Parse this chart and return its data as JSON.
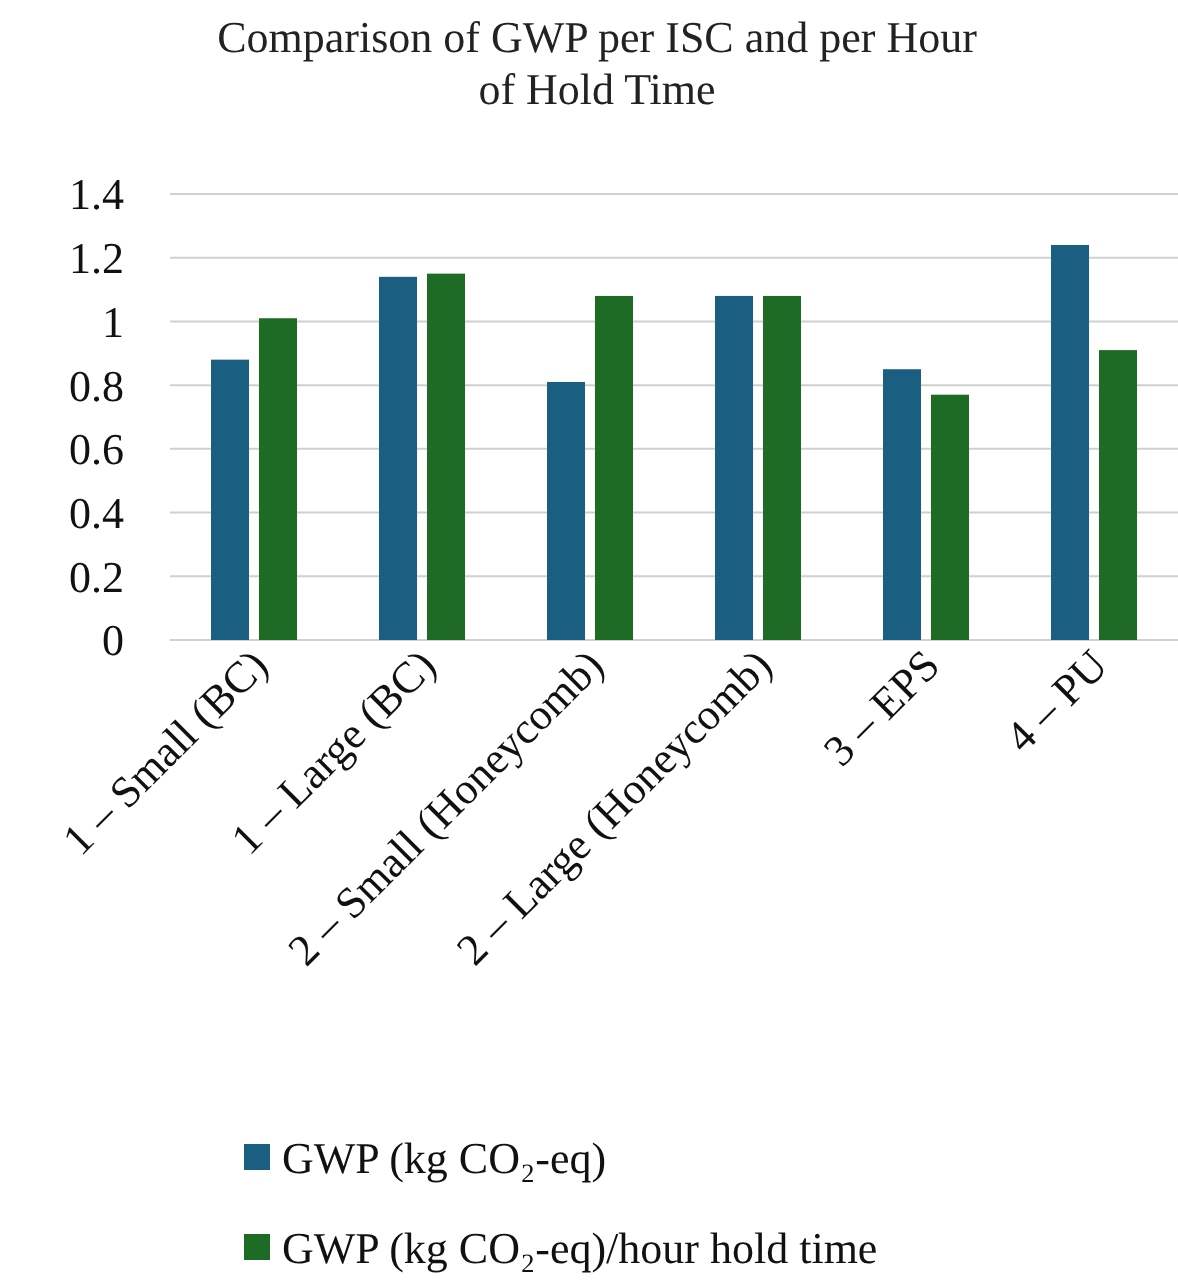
{
  "chart_data": {
    "type": "bar",
    "title": "Comparison of GWP per ISC and per Hour of Hold Time",
    "categories": [
      "1 – Small (BC)",
      "1 – Large (BC)",
      "2 – Small (Honeycomb)",
      "2 – Large (Honeycomb)",
      "3 – EPS",
      "4 – PU"
    ],
    "series": [
      {
        "name": "GWP (kg CO₂-eq)",
        "color": "#1a5f82",
        "values": [
          0.88,
          1.14,
          0.81,
          1.08,
          0.85,
          1.24
        ]
      },
      {
        "name": "GWP (kg CO₂-eq)/hour hold time",
        "color": "#1e6b25",
        "values": [
          1.01,
          1.15,
          1.08,
          1.08,
          0.77,
          0.91
        ]
      }
    ],
    "ylim": [
      0,
      1.4
    ],
    "yticks": [
      0,
      {
        "value": 0.2,
        "label": "0.2"
      },
      {
        "value": 0.4,
        "label": "0.4"
      },
      {
        "value": 0.6,
        "label": "0.6"
      },
      {
        "value": 0.8,
        "label": "0.8"
      },
      1,
      {
        "value": 1.2,
        "label": "1.2"
      },
      {
        "value": 1.4,
        "label": "1.4"
      }
    ],
    "grid": "y",
    "legend": "bottom"
  }
}
